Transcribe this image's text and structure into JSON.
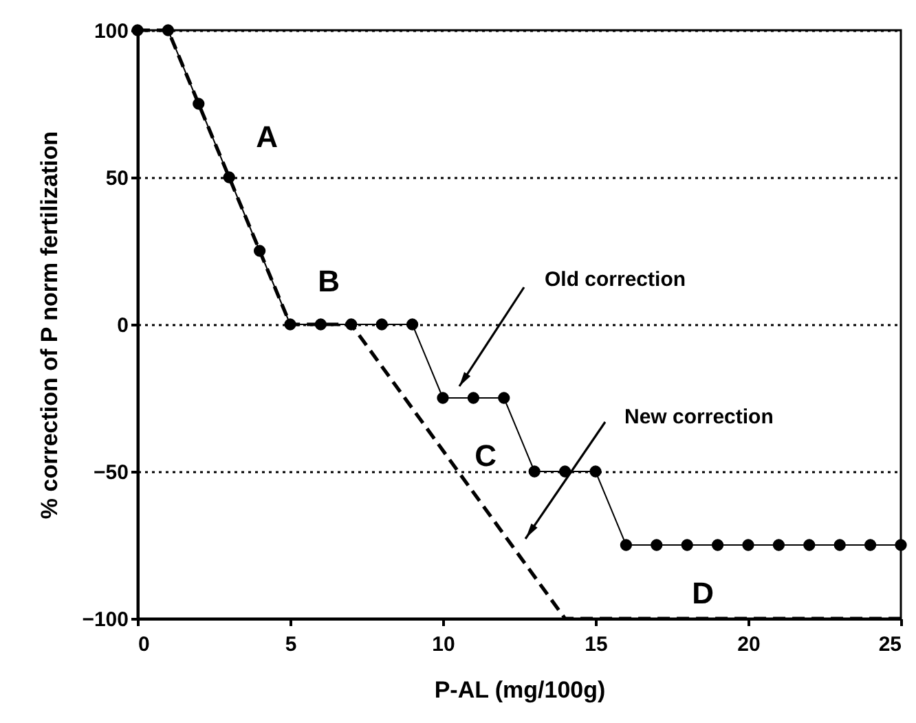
{
  "chart_data": {
    "type": "line",
    "xlabel": "P-AL (mg/100g)",
    "ylabel": "% correction of P norm fertilization",
    "xlim": [
      0,
      25
    ],
    "xticks": [
      0,
      5,
      10,
      15,
      20,
      25
    ],
    "ylim": [
      -100,
      100
    ],
    "yticks": [
      -100,
      -50,
      0,
      50,
      100
    ],
    "grid": "y",
    "series": [
      {
        "color": "#000000",
        "marker": "circle",
        "line_style": "solid",
        "x": [
          0,
          1,
          2,
          3,
          4,
          5,
          6,
          7,
          8,
          9,
          10,
          11,
          12,
          13,
          14,
          15,
          16,
          17,
          18,
          19,
          20,
          21,
          22,
          23,
          24,
          25
        ],
        "values": [
          100,
          100,
          75,
          50,
          25,
          0,
          0,
          0,
          0,
          0,
          -25,
          -25,
          -25,
          -50,
          -50,
          -50,
          -75,
          -75,
          -75,
          -75,
          -75,
          -75,
          -75,
          -75,
          -75,
          -75
        ]
      },
      {
        "color": "#000000",
        "marker": "none",
        "line_style": "dashed",
        "x": [
          0,
          1,
          5,
          7,
          14,
          25
        ],
        "values": [
          100,
          100,
          0,
          0,
          -100,
          -100
        ]
      }
    ],
    "annotations": [
      "A",
      "B",
      "C",
      "D",
      "Old correction",
      "New correction"
    ]
  }
}
